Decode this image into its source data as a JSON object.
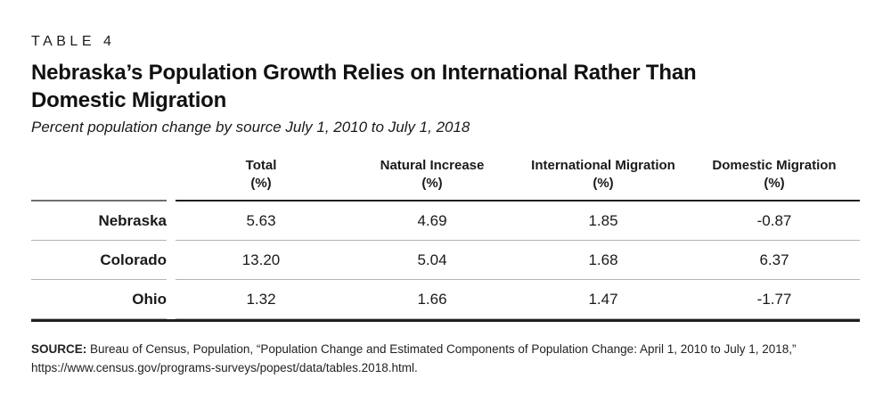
{
  "header": {
    "eyebrow": "TABLE 4",
    "title": "Nebraska’s Population Growth Relies on International Rather Than Domestic Migration",
    "subtitle": "Percent population change by source July 1, 2010 to July 1, 2018"
  },
  "chart_data": {
    "type": "table",
    "title": "Nebraska’s Population Growth Relies on International Rather Than Domestic Migration",
    "subtitle": "Percent population change by source July 1, 2010 to July 1, 2018",
    "columns": [
      {
        "label": "Total",
        "unit": "(%)"
      },
      {
        "label": "Natural Increase",
        "unit": "(%)"
      },
      {
        "label": "International Migration",
        "unit": "(%)"
      },
      {
        "label": "Domestic Migration",
        "unit": "(%)"
      }
    ],
    "rows": [
      {
        "label": "Nebraska",
        "values": [
          "5.63",
          "4.69",
          "1.85",
          "-0.87"
        ]
      },
      {
        "label": "Colorado",
        "values": [
          "13.20",
          "5.04",
          "1.68",
          "6.37"
        ]
      },
      {
        "label": "Ohio",
        "values": [
          "1.32",
          "1.66",
          "1.47",
          "-1.77"
        ]
      }
    ]
  },
  "source": {
    "label": "SOURCE:",
    "text": "Bureau of Census, Population, “Population Change and Estimated Components of Population Change: April 1, 2010 to July 1, 2018,”",
    "url": "https://www.census.gov/programs-surveys/popest/data/tables.2018.html."
  },
  "colors": {
    "text": "#1a1a1a",
    "header_rule": "#1f1f1f",
    "header_label_rule": "#6e6e6e",
    "row_separator": "#b3b3b3",
    "bottom_rule": "#1f1f1f"
  }
}
